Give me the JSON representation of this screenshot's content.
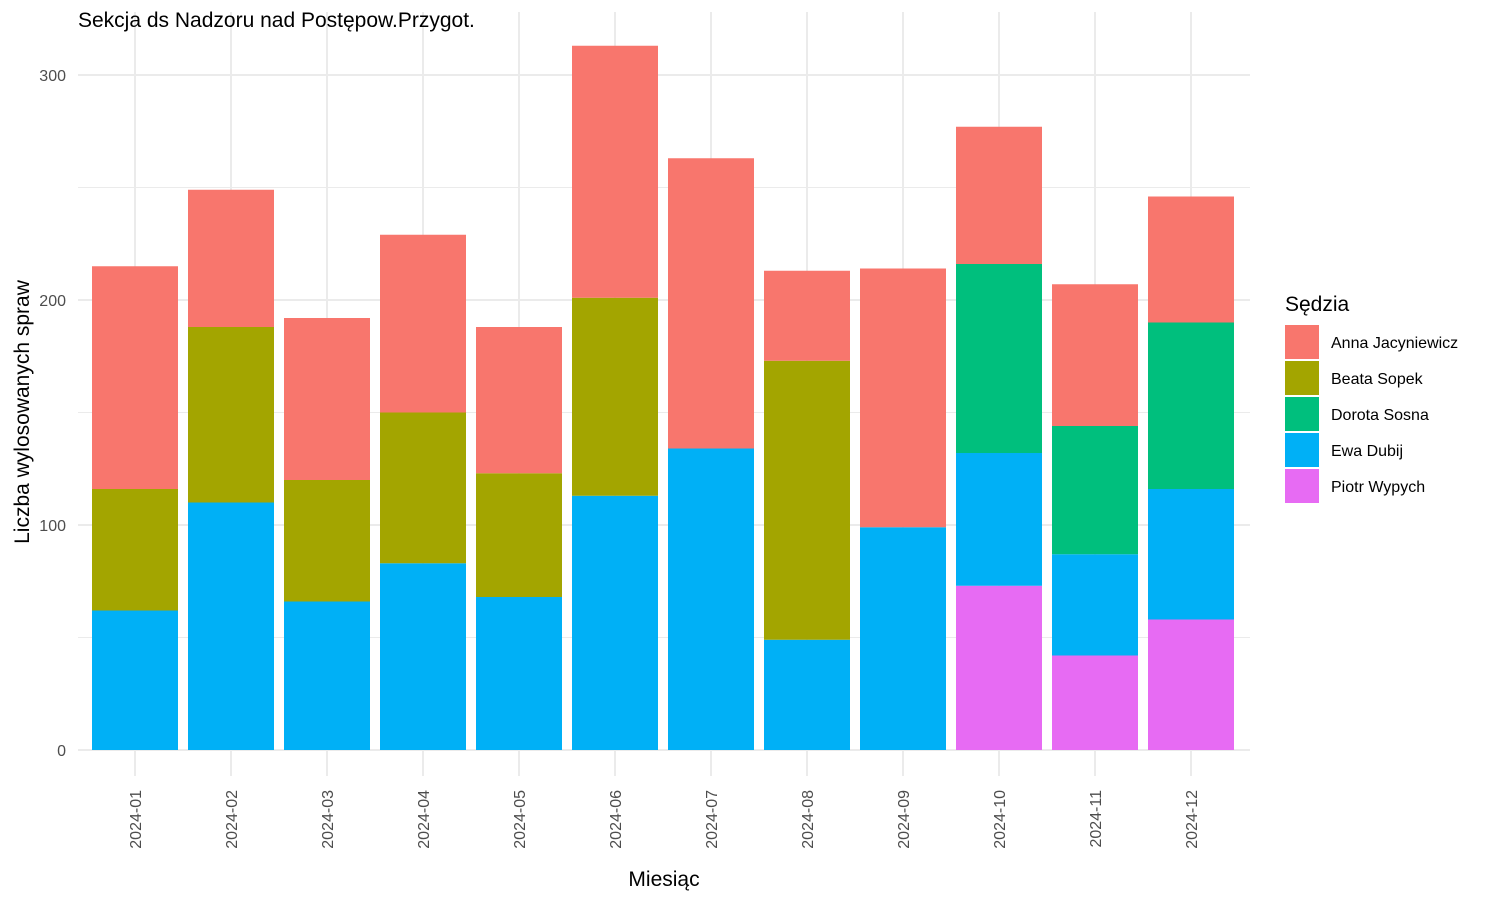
{
  "chart_data": {
    "type": "bar",
    "stacked": true,
    "title": "Sekcja ds Nadzoru nad Postępow.Przygot.",
    "xlabel": "Miesiąc",
    "ylabel": "Liczba wylosowanych spraw",
    "ylim": [
      0,
      318
    ],
    "yticks": [
      0,
      100,
      200,
      300
    ],
    "grid": true,
    "legend": {
      "title": "Sędzia",
      "position": "right"
    },
    "categories": [
      "2024-01",
      "2024-02",
      "2024-03",
      "2024-04",
      "2024-05",
      "2024-06",
      "2024-07",
      "2024-08",
      "2024-09",
      "2024-10",
      "2024-11",
      "2024-12"
    ],
    "stack_order_bottom_to_top": [
      "Piotr Wypych",
      "Ewa Dubij",
      "Dorota Sosna",
      "Beata Sopek",
      "Anna Jacyniewicz"
    ],
    "series": [
      {
        "name": "Anna Jacyniewicz",
        "color": "#F8766D",
        "values": [
          99,
          61,
          72,
          79,
          65,
          112,
          129,
          40,
          115,
          61,
          63,
          56
        ]
      },
      {
        "name": "Beata Sopek",
        "color": "#A3A500",
        "values": [
          54,
          78,
          54,
          67,
          55,
          88,
          0,
          124,
          0,
          0,
          0,
          0
        ]
      },
      {
        "name": "Dorota Sosna",
        "color": "#00BF7D",
        "values": [
          0,
          0,
          0,
          0,
          0,
          0,
          0,
          0,
          0,
          84,
          57,
          74
        ]
      },
      {
        "name": "Ewa Dubij",
        "color": "#00B0F6",
        "values": [
          62,
          110,
          66,
          83,
          68,
          113,
          134,
          49,
          99,
          59,
          45,
          58
        ]
      },
      {
        "name": "Piotr Wypych",
        "color": "#E76BF3",
        "values": [
          0,
          0,
          0,
          0,
          0,
          0,
          0,
          0,
          0,
          73,
          42,
          58
        ]
      }
    ]
  }
}
